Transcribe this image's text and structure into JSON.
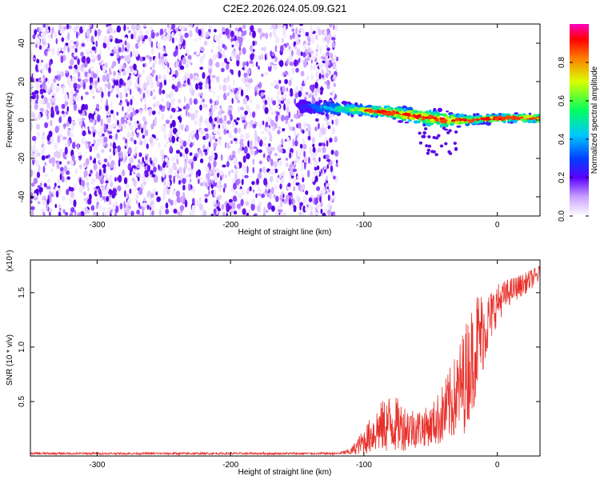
{
  "title": "C2E2.2026.024.05.09.G21",
  "chart_data": [
    {
      "type": "heatmap",
      "name": "spectrogram",
      "xlabel": "Height of straight line (km)",
      "ylabel": "Frequency (Hz)",
      "xlim": [
        -350,
        32
      ],
      "ylim": [
        -50,
        50
      ],
      "xticks": [
        -300,
        -200,
        -100,
        0
      ],
      "yticks": [
        -40,
        -20,
        0,
        20,
        40
      ],
      "noise_region_x": [
        -350,
        -120
      ],
      "signal_track": {
        "x": [
          -150,
          -120,
          -100,
          -80,
          -60,
          -40,
          -20,
          0,
          20,
          32
        ],
        "center_freq": [
          7,
          6,
          5,
          4,
          2,
          0,
          0,
          1,
          1,
          1
        ],
        "bandwidth": [
          3,
          3,
          2.5,
          3,
          4,
          4,
          2,
          2,
          2,
          2
        ]
      },
      "colorbar": {
        "label": "Normalized spectral amplitude",
        "range": [
          0,
          1
        ],
        "ticks": [
          0.0,
          0.2,
          0.4,
          0.6,
          0.8
        ],
        "tick_labels": [
          "0.0",
          "0.2",
          "0.4",
          "0.6",
          "0.8"
        ]
      }
    },
    {
      "type": "line",
      "name": "snr",
      "xlabel": "Height of straight line (km)",
      "ylabel": "SNR (10 * v/v)",
      "multiplier": "(x10⁴)",
      "xlim": [
        -350,
        32
      ],
      "ylim": [
        0,
        1.8
      ],
      "xticks": [
        -300,
        -200,
        -100,
        0
      ],
      "yticks": [
        0.5,
        1.0,
        1.5
      ],
      "ytick_labels": [
        "0.5",
        "1.0",
        "1.5"
      ],
      "color": "#e8302a",
      "series": [
        {
          "name": "SNR",
          "x": [
            -350,
            -300,
            -250,
            -200,
            -150,
            -120,
            -110,
            -100,
            -90,
            -80,
            -70,
            -60,
            -50,
            -40,
            -30,
            -25,
            -20,
            -15,
            -10,
            -5,
            0,
            10,
            20,
            32
          ],
          "baseline": [
            0.02,
            0.02,
            0.02,
            0.02,
            0.02,
            0.02,
            0.03,
            0.1,
            0.18,
            0.22,
            0.2,
            0.2,
            0.22,
            0.3,
            0.45,
            0.55,
            0.7,
            0.9,
            1.05,
            1.2,
            1.35,
            1.48,
            1.55,
            1.65
          ],
          "amplitude": [
            0.01,
            0.01,
            0.01,
            0.01,
            0.01,
            0.01,
            0.03,
            0.12,
            0.22,
            0.28,
            0.22,
            0.18,
            0.18,
            0.3,
            0.4,
            0.5,
            0.5,
            0.5,
            0.35,
            0.25,
            0.18,
            0.12,
            0.1,
            0.08
          ]
        }
      ]
    }
  ]
}
